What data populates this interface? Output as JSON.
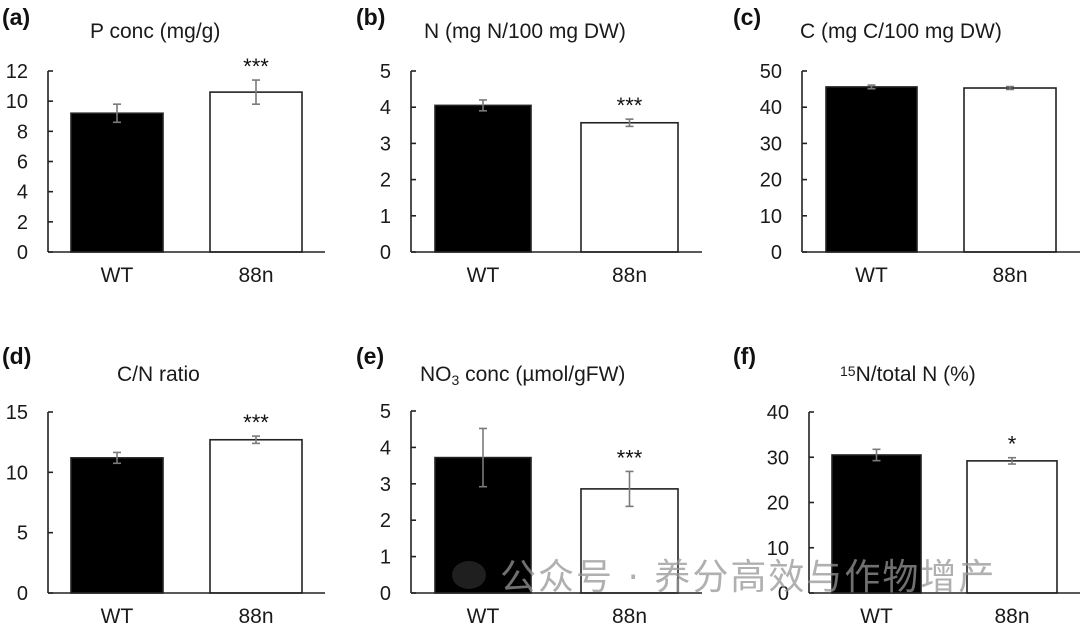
{
  "figure": {
    "watermark": "公众号 · 养分高效与作物增产",
    "watermark_icon": "wechat-icon"
  },
  "colors": {
    "WT": "#000000",
    "88n": "#ffffff",
    "bar_edge": "#222222",
    "error_bar": "#7a7a7a"
  },
  "chart_data": [
    {
      "type": "bar",
      "panel": "(a)",
      "title": "P conc (mg/g)",
      "title_parts": [
        {
          "text": "P conc (mg/g)"
        }
      ],
      "categories": [
        "WT",
        "88n"
      ],
      "values": [
        9.2,
        10.6
      ],
      "errors": [
        0.6,
        0.8
      ],
      "significance": [
        "",
        "***"
      ],
      "yticks": [
        "0",
        "2",
        "4",
        "6",
        "8",
        "10",
        "12"
      ],
      "ylim": [
        0,
        12
      ],
      "xlabel": "",
      "ylabel": "",
      "grid": false
    },
    {
      "type": "bar",
      "panel": "(b)",
      "title": "N (mg N/100 mg DW)",
      "title_parts": [
        {
          "text": "N (mg N/100 mg DW)"
        }
      ],
      "categories": [
        "WT",
        "88n"
      ],
      "values": [
        4.05,
        3.57
      ],
      "errors": [
        0.15,
        0.1
      ],
      "significance": [
        "",
        "***"
      ],
      "yticks": [
        "0",
        "1",
        "2",
        "3",
        "4",
        "5"
      ],
      "ylim": [
        0,
        5
      ],
      "xlabel": "",
      "ylabel": "",
      "grid": false
    },
    {
      "type": "bar",
      "panel": "(c)",
      "title": "C (mg C/100 mg DW)",
      "title_parts": [
        {
          "text": "C (mg C/100 mg DW)"
        }
      ],
      "categories": [
        "WT",
        "88n"
      ],
      "values": [
        45.6,
        45.3
      ],
      "errors": [
        0.5,
        0.4
      ],
      "significance": [
        "",
        ""
      ],
      "yticks": [
        "0",
        "10",
        "20",
        "30",
        "40",
        "50"
      ],
      "ylim": [
        0,
        50
      ],
      "xlabel": "",
      "ylabel": "",
      "grid": false
    },
    {
      "type": "bar",
      "panel": "(d)",
      "title": "C/N ratio",
      "title_parts": [
        {
          "text": "C/N ratio"
        }
      ],
      "categories": [
        "WT",
        "88n"
      ],
      "values": [
        11.2,
        12.7
      ],
      "errors": [
        0.45,
        0.3
      ],
      "significance": [
        "",
        "***"
      ],
      "yticks": [
        "0",
        "5",
        "10",
        "15"
      ],
      "ylim": [
        0,
        15
      ],
      "xlabel": "",
      "ylabel": "",
      "grid": false
    },
    {
      "type": "bar",
      "panel": "(e)",
      "title": "NO3 conc (µmol/gFW)",
      "title_parts": [
        {
          "text": "NO"
        },
        {
          "text": "3",
          "sub": true
        },
        {
          "text": " conc (µmol/gFW)"
        }
      ],
      "categories": [
        "WT",
        "88n"
      ],
      "values": [
        3.72,
        2.86
      ],
      "errors": [
        0.8,
        0.48
      ],
      "significance": [
        "",
        "***"
      ],
      "yticks": [
        "0",
        "1",
        "2",
        "3",
        "4",
        "5"
      ],
      "ylim": [
        0,
        5
      ],
      "xlabel": "",
      "ylabel": "",
      "grid": false
    },
    {
      "type": "bar",
      "panel": "(f)",
      "title": "15N/total N (%)",
      "title_parts": [
        {
          "text": "15",
          "sup": true
        },
        {
          "text": "N/total N (%)"
        }
      ],
      "categories": [
        "WT",
        "88n"
      ],
      "values": [
        30.5,
        29.2
      ],
      "errors": [
        1.25,
        0.7
      ],
      "significance": [
        "",
        "*"
      ],
      "yticks": [
        "0",
        "10",
        "20",
        "30",
        "40"
      ],
      "ylim": [
        0,
        40
      ],
      "xlabel": "",
      "ylabel": "",
      "grid": false
    }
  ]
}
